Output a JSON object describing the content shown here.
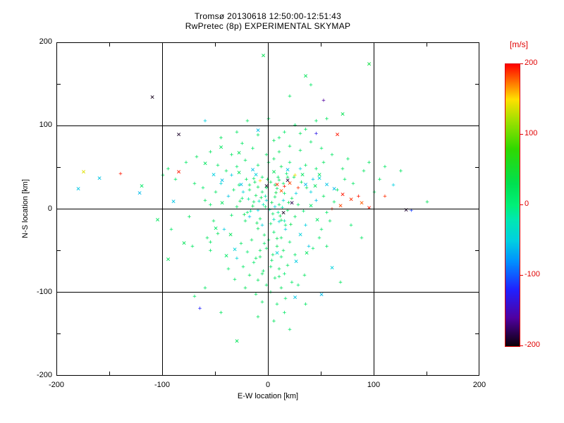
{
  "chart_data": {
    "type": "scatter",
    "title": "Tromsø 20130618 12:50:00-12:51:43",
    "subtitle": "RwPretec (8p) EXPERIMENTAL SKYMAP",
    "xlabel": "E-W location [km]",
    "ylabel": "N-S location [km]",
    "xlim": [
      -200,
      200
    ],
    "ylim": [
      -200,
      200
    ],
    "grid": true,
    "legend": "colorbar",
    "color_dimension": "line-of-sight velocity [m/s]",
    "color_range": [
      -200,
      200
    ],
    "points": [
      [
        -110,
        135,
        -195,
        "x"
      ],
      [
        -85,
        90,
        -192,
        "x"
      ],
      [
        -5,
        185,
        30,
        "x"
      ],
      [
        35,
        160,
        25,
        "x"
      ],
      [
        95,
        175,
        40,
        "x"
      ],
      [
        70,
        115,
        30,
        "x"
      ],
      [
        52,
        130,
        -160
      ],
      [
        20,
        135,
        20
      ],
      [
        40,
        148,
        15
      ],
      [
        -10,
        95,
        -60,
        "x"
      ],
      [
        -45,
        75,
        20,
        "x"
      ],
      [
        -28,
        68,
        25,
        "x"
      ],
      [
        65,
        90,
        195,
        "x"
      ],
      [
        30,
        90,
        20
      ],
      [
        10,
        85,
        15
      ],
      [
        -60,
        55,
        20,
        "x"
      ],
      [
        -175,
        45,
        140,
        "x"
      ],
      [
        -180,
        25,
        -55,
        "x"
      ],
      [
        -160,
        38,
        -55,
        "x"
      ],
      [
        -120,
        28,
        15,
        "x"
      ],
      [
        -122,
        20,
        -60,
        "x"
      ],
      [
        -105,
        -12,
        20,
        "x"
      ],
      [
        -85,
        45,
        195,
        "x"
      ],
      [
        -140,
        42,
        195
      ],
      [
        55,
        30,
        -55,
        "x"
      ],
      [
        62,
        25,
        -60,
        "x"
      ],
      [
        70,
        18,
        195,
        "x"
      ],
      [
        78,
        12,
        190,
        "x"
      ],
      [
        85,
        15,
        195
      ],
      [
        95,
        2,
        195,
        "x"
      ],
      [
        110,
        15,
        190
      ],
      [
        130,
        0,
        -190,
        "x"
      ],
      [
        135,
        -2,
        -110
      ],
      [
        150,
        8,
        25
      ],
      [
        25,
        -105,
        -55,
        "x"
      ],
      [
        50,
        -102,
        -60,
        "x"
      ],
      [
        -30,
        -158,
        25,
        "x"
      ],
      [
        -65,
        -120,
        -120
      ],
      [
        -10,
        -130,
        20
      ],
      [
        15,
        -125,
        15
      ],
      [
        -95,
        -60,
        20,
        "x"
      ],
      [
        -80,
        -40,
        25,
        "x"
      ],
      [
        -90,
        10,
        -55,
        "x"
      ],
      [
        45,
        90,
        -130
      ],
      [
        8,
        30,
        190,
        "x"
      ],
      [
        15,
        27,
        195
      ],
      [
        20,
        32,
        185,
        "x"
      ],
      [
        28,
        25,
        190
      ],
      [
        12,
        22,
        180,
        "x"
      ],
      [
        -2,
        28,
        -192,
        "x"
      ],
      [
        18,
        35,
        -188,
        "x"
      ],
      [
        25,
        40,
        145
      ],
      [
        -8,
        33,
        150
      ],
      [
        35,
        30,
        -60,
        "x"
      ],
      [
        42,
        35,
        -55
      ],
      [
        48,
        42,
        20,
        "x"
      ],
      [
        5,
        45,
        25,
        "x"
      ],
      [
        -15,
        48,
        -58,
        "x"
      ],
      [
        60,
        0,
        190
      ],
      [
        68,
        5,
        185,
        "x"
      ],
      [
        88,
        8,
        180,
        "x"
      ],
      [
        14,
        -4,
        -195,
        "x"
      ],
      [
        22,
        8,
        -182,
        "x"
      ],
      [
        0,
        108,
        18
      ],
      [
        -60,
        105,
        -50
      ],
      [
        55,
        108,
        20
      ],
      [
        -3,
        2,
        12
      ],
      [
        4,
        -6,
        18
      ],
      [
        -8,
        -12,
        22
      ],
      [
        10,
        5,
        8
      ],
      [
        -14,
        8,
        15
      ],
      [
        6,
        14,
        20
      ],
      [
        18,
        -2,
        25
      ],
      [
        -20,
        -5,
        10
      ],
      [
        2,
        -18,
        16
      ],
      [
        12,
        -14,
        22
      ],
      [
        -6,
        20,
        18
      ],
      [
        8,
        24,
        12
      ],
      [
        -12,
        16,
        25
      ],
      [
        15,
        18,
        15
      ],
      [
        22,
        12,
        20
      ],
      [
        -25,
        12,
        8
      ],
      [
        -18,
        22,
        14
      ],
      [
        28,
        5,
        18
      ],
      [
        -30,
        2,
        22
      ],
      [
        33,
        -3,
        12
      ],
      [
        -35,
        -8,
        15
      ],
      [
        25,
        -10,
        20
      ],
      [
        -22,
        -15,
        18
      ],
      [
        16,
        -20,
        10
      ],
      [
        -10,
        -24,
        24
      ],
      [
        5,
        -28,
        14
      ],
      [
        -4,
        -32,
        20
      ],
      [
        12,
        -35,
        16
      ],
      [
        -16,
        -38,
        22
      ],
      [
        20,
        -40,
        12
      ],
      [
        -26,
        -42,
        18
      ],
      [
        8,
        -45,
        25
      ],
      [
        -2,
        -48,
        15
      ],
      [
        14,
        -50,
        20
      ],
      [
        -20,
        -52,
        10
      ],
      [
        25,
        -55,
        16
      ],
      [
        -8,
        -58,
        22
      ],
      [
        3,
        -62,
        18
      ],
      [
        -14,
        -65,
        12
      ],
      [
        18,
        -68,
        20
      ],
      [
        -24,
        -70,
        15
      ],
      [
        10,
        -72,
        22
      ],
      [
        -5,
        -75,
        18
      ],
      [
        15,
        -78,
        10
      ],
      [
        -18,
        -80,
        24
      ],
      [
        6,
        -83,
        16
      ],
      [
        -10,
        -86,
        20
      ],
      [
        22,
        -88,
        14
      ],
      [
        -2,
        -92,
        18
      ],
      [
        12,
        -95,
        22
      ],
      [
        -30,
        -60,
        -45
      ],
      [
        35,
        -20,
        -50
      ],
      [
        -38,
        15,
        -55
      ],
      [
        40,
        20,
        -48
      ],
      [
        -42,
        -25,
        -52
      ],
      [
        45,
        10,
        -58
      ],
      [
        -45,
        30,
        -42
      ],
      [
        38,
        -45,
        -55
      ],
      [
        -35,
        40,
        -50
      ],
      [
        30,
        48,
        -45
      ],
      [
        0,
        55,
        20
      ],
      [
        -10,
        52,
        15
      ],
      [
        12,
        50,
        25
      ],
      [
        20,
        55,
        10
      ],
      [
        -22,
        58,
        18
      ],
      [
        5,
        60,
        22
      ],
      [
        -30,
        50,
        12
      ],
      [
        35,
        52,
        16
      ],
      [
        -40,
        45,
        20
      ],
      [
        45,
        48,
        14
      ],
      [
        -50,
        20,
        18
      ],
      [
        52,
        15,
        22
      ],
      [
        -55,
        5,
        12
      ],
      [
        55,
        -5,
        16
      ],
      [
        -52,
        -15,
        20
      ],
      [
        50,
        -25,
        10
      ],
      [
        -48,
        -30,
        24
      ],
      [
        48,
        -35,
        15
      ],
      [
        -55,
        -40,
        18
      ],
      [
        42,
        -48,
        12
      ],
      [
        -2,
        10,
        -40
      ],
      [
        6,
        2,
        -45
      ],
      [
        -10,
        -2,
        -50
      ],
      [
        14,
        10,
        -38
      ],
      [
        -18,
        -10,
        -55
      ],
      [
        10,
        -16,
        -42
      ],
      [
        -6,
        -20,
        -48
      ],
      [
        16,
        -25,
        -52
      ],
      [
        -24,
        20,
        -44
      ],
      [
        26,
        18,
        -50
      ],
      [
        -1,
        35,
        25
      ],
      [
        9,
        38,
        15
      ],
      [
        -13,
        32,
        20
      ],
      [
        17,
        42,
        10
      ],
      [
        -21,
        35,
        22
      ],
      [
        24,
        38,
        18
      ],
      [
        -28,
        28,
        12
      ],
      [
        31,
        32,
        24
      ],
      [
        -33,
        22,
        16
      ],
      [
        36,
        25,
        20
      ],
      [
        2,
        -100,
        18
      ],
      [
        -12,
        -103,
        22
      ],
      [
        16,
        -108,
        12
      ],
      [
        -6,
        -112,
        20
      ],
      [
        8,
        -115,
        15
      ],
      [
        -22,
        -95,
        25
      ],
      [
        28,
        -92,
        10
      ],
      [
        -32,
        -85,
        18
      ],
      [
        34,
        -80,
        22
      ],
      [
        -38,
        -72,
        14
      ],
      [
        3,
        7,
        30
      ],
      [
        -7,
        13,
        28
      ],
      [
        11,
        -9,
        32
      ],
      [
        -15,
        3,
        26
      ],
      [
        19,
        7,
        30
      ],
      [
        -23,
        -7,
        28
      ],
      [
        7,
        19,
        34
      ],
      [
        -11,
        -17,
        26
      ],
      [
        21,
        -19,
        30
      ],
      [
        -27,
        9,
        28
      ],
      [
        1,
        -1,
        -15
      ],
      [
        -5,
        5,
        -20
      ],
      [
        9,
        -5,
        -10
      ],
      [
        -9,
        9,
        -25
      ],
      [
        13,
        1,
        -18
      ],
      [
        -17,
        -3,
        -12
      ],
      [
        5,
        -13,
        -22
      ],
      [
        -3,
        15,
        -16
      ],
      [
        15,
        -15,
        -20
      ],
      [
        -19,
        11,
        -14
      ],
      [
        -44,
        8,
        20,
        "x"
      ],
      [
        46,
        -12,
        15,
        "x"
      ],
      [
        -36,
        -30,
        25,
        "x"
      ],
      [
        32,
        42,
        18,
        "x"
      ],
      [
        -28,
        44,
        22,
        "x"
      ],
      [
        40,
        5,
        12,
        "x"
      ],
      [
        -50,
        -22,
        16,
        "x"
      ],
      [
        36,
        -52,
        20,
        "x"
      ],
      [
        -40,
        -55,
        14,
        "x"
      ],
      [
        44,
        28,
        24,
        "x"
      ],
      [
        -12,
        42,
        -48,
        "x"
      ],
      [
        18,
        48,
        -55,
        "x"
      ],
      [
        -32,
        -48,
        -45,
        "x"
      ],
      [
        26,
        -62,
        -52,
        "x"
      ],
      [
        -44,
        35,
        -58,
        "x"
      ],
      [
        48,
        38,
        -46,
        "x"
      ],
      [
        -52,
        42,
        -50,
        "x"
      ],
      [
        8,
        -52,
        -44,
        "x"
      ],
      [
        -26,
        30,
        -56,
        "x"
      ],
      [
        30,
        -30,
        -48,
        "x"
      ],
      [
        58,
        -15,
        18
      ],
      [
        -60,
        10,
        22
      ],
      [
        62,
        8,
        14
      ],
      [
        -58,
        -35,
        20
      ],
      [
        55,
        -45,
        16
      ],
      [
        -62,
        25,
        12
      ],
      [
        65,
        22,
        20
      ],
      [
        -48,
        52,
        18
      ],
      [
        52,
        55,
        22
      ],
      [
        -55,
        -50,
        15
      ],
      [
        0,
        -38,
        20
      ],
      [
        -4,
        -42,
        16
      ],
      [
        8,
        -36,
        24
      ],
      [
        4,
        -55,
        18
      ],
      [
        -8,
        -50,
        22
      ],
      [
        12,
        -58,
        14
      ],
      [
        -12,
        -60,
        20
      ],
      [
        2,
        -70,
        16
      ],
      [
        -6,
        -78,
        24
      ],
      [
        10,
        -82,
        18
      ],
      [
        -2,
        25,
        20
      ],
      [
        6,
        28,
        16
      ],
      [
        -10,
        26,
        24
      ],
      [
        14,
        30,
        12
      ],
      [
        -18,
        28,
        18
      ],
      [
        2,
        32,
        22
      ],
      [
        -14,
        36,
        14
      ],
      [
        10,
        34,
        20
      ],
      [
        -6,
        38,
        16
      ],
      [
        18,
        38,
        24
      ],
      [
        -70,
        30,
        20
      ],
      [
        72,
        35,
        16
      ],
      [
        -75,
        -10,
        22
      ],
      [
        78,
        -20,
        12
      ],
      [
        -72,
        -45,
        18
      ],
      [
        70,
        48,
        20
      ],
      [
        -78,
        55,
        14
      ],
      [
        75,
        60,
        18
      ],
      [
        -68,
        62,
        22
      ],
      [
        80,
        30,
        16
      ],
      [
        90,
        45,
        20
      ],
      [
        -88,
        35,
        16
      ],
      [
        95,
        55,
        22
      ],
      [
        -92,
        -25,
        14
      ],
      [
        88,
        -35,
        18
      ],
      [
        -95,
        48,
        20
      ],
      [
        100,
        20,
        15
      ],
      [
        -100,
        40,
        18
      ],
      [
        105,
        35,
        20
      ],
      [
        110,
        50,
        16
      ],
      [
        -2,
        65,
        18
      ],
      [
        10,
        68,
        22
      ],
      [
        -15,
        72,
        14
      ],
      [
        20,
        75,
        20
      ],
      [
        -25,
        78,
        16
      ],
      [
        5,
        82,
        24
      ],
      [
        -10,
        88,
        18
      ],
      [
        15,
        92,
        12
      ],
      [
        30,
        70,
        20
      ],
      [
        -35,
        65,
        16
      ],
      [
        40,
        80,
        18
      ],
      [
        -45,
        85,
        22
      ],
      [
        50,
        72,
        14
      ],
      [
        -55,
        68,
        20
      ],
      [
        60,
        65,
        16
      ],
      [
        35,
        95,
        22
      ],
      [
        -30,
        92,
        18
      ],
      [
        25,
        100,
        14
      ],
      [
        -20,
        105,
        20
      ],
      [
        45,
        105,
        16
      ],
      [
        118,
        28,
        -50
      ],
      [
        125,
        45,
        18
      ],
      [
        60,
        -70,
        -48,
        "x"
      ],
      [
        -60,
        -95,
        18
      ],
      [
        68,
        -88,
        20
      ],
      [
        -70,
        -105,
        16
      ],
      [
        35,
        -115,
        18
      ],
      [
        -45,
        -125,
        20
      ],
      [
        20,
        -145,
        16
      ],
      [
        5,
        -135,
        22
      ]
    ]
  },
  "axes": {
    "xticks": [
      -200,
      -100,
      0,
      100,
      200
    ],
    "yticks": [
      -200,
      -100,
      0,
      100,
      200
    ],
    "grid_ticks": [
      -100,
      0,
      100
    ],
    "minor_ticks": [
      -150,
      -50,
      50,
      150
    ],
    "line_color": "#000000"
  },
  "colorbar": {
    "label": "[m/s]",
    "min": -200,
    "max": 200,
    "ticks": [
      200,
      100,
      0,
      -100,
      -200
    ],
    "text_color": "#e00000",
    "stops": [
      [
        -200,
        "#0a0008"
      ],
      [
        -160,
        "#5000a0"
      ],
      [
        -120,
        "#2020ff"
      ],
      [
        -80,
        "#0090ff"
      ],
      [
        -50,
        "#00d0e0"
      ],
      [
        -20,
        "#00e8b0"
      ],
      [
        0,
        "#00f078"
      ],
      [
        30,
        "#00e050"
      ],
      [
        80,
        "#30d800"
      ],
      [
        120,
        "#a0e000"
      ],
      [
        150,
        "#ffe000"
      ],
      [
        175,
        "#ff7000"
      ],
      [
        200,
        "#ff0000"
      ]
    ]
  }
}
